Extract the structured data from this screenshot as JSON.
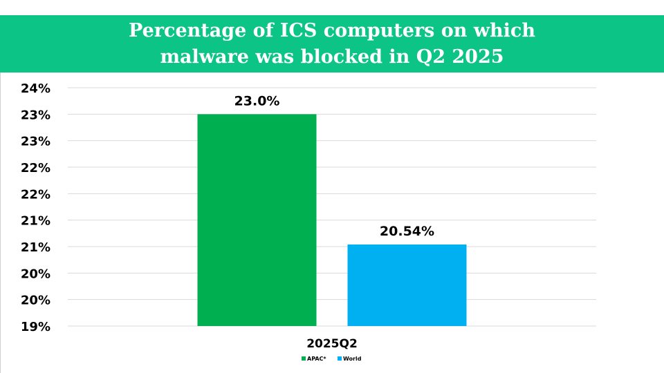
{
  "title_line1": "Percentage of ICS computers on which",
  "title_line2": "malware was blocked in Q2 2025",
  "colors": {
    "header": "#0cc485",
    "gridline": "#d9d9d9"
  },
  "chart_data": {
    "type": "bar",
    "title": "Percentage of ICS computers on which malware was blocked in Q2 2025",
    "categories": [
      "2025Q2"
    ],
    "series": [
      {
        "name": "APAC*",
        "values": [
          23.0
        ],
        "label": "23.0%",
        "color": "#00b050"
      },
      {
        "name": "World",
        "values": [
          20.54
        ],
        "label": "20.54%",
        "color": "#00b0f0"
      }
    ],
    "y_ticks": [
      "24%",
      "23%",
      "23%",
      "22%",
      "22%",
      "21%",
      "21%",
      "20%",
      "20%",
      "19%"
    ],
    "ylim": [
      19.0,
      23.5
    ],
    "grid": true,
    "legend": "bottom"
  }
}
